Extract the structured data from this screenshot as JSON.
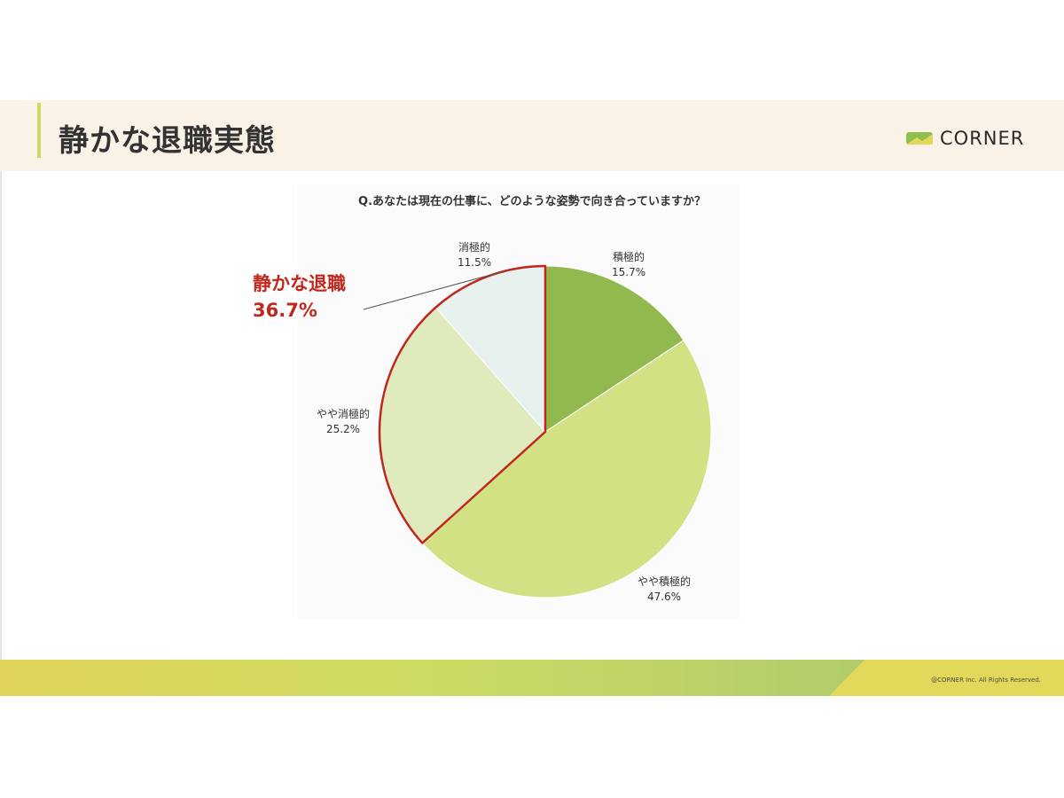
{
  "header": {
    "title": "静かな退職実態",
    "logo_text": "CORNER"
  },
  "question": "Q.あなたは現在の仕事に、どのような姿勢で向き合っていますか？",
  "highlight": {
    "label": "静かな退職",
    "value": "36.7%",
    "color": "#c0281f"
  },
  "chart_data": {
    "type": "pie",
    "title": "Q.あなたは現在の仕事に、どのような姿勢で向き合っていますか？",
    "slices": [
      {
        "label": "積極的",
        "value": 15.7,
        "value_label": "15.7%",
        "color": "#92b94d"
      },
      {
        "label": "やや積極的",
        "value": 47.6,
        "value_label": "47.6%",
        "color": "#d2e183"
      },
      {
        "label": "やや消極的",
        "value": 25.2,
        "value_label": "25.2%",
        "color": "#e0ebbd"
      },
      {
        "label": "消極的",
        "value": 11.5,
        "value_label": "11.5%",
        "color": "#e7f1ee"
      }
    ],
    "start_angle": "12 o'clock",
    "direction": "clockwise",
    "highlighted_slices": [
      "やや消極的",
      "消極的"
    ],
    "highlight_outline_color": "#c0281f"
  },
  "footer": {
    "copyright": "@CORNER Inc. All Rights Reserved."
  },
  "colors": {
    "header_bg": "#faf2e6",
    "accent": "#c9da5e",
    "title_text": "#333333"
  }
}
